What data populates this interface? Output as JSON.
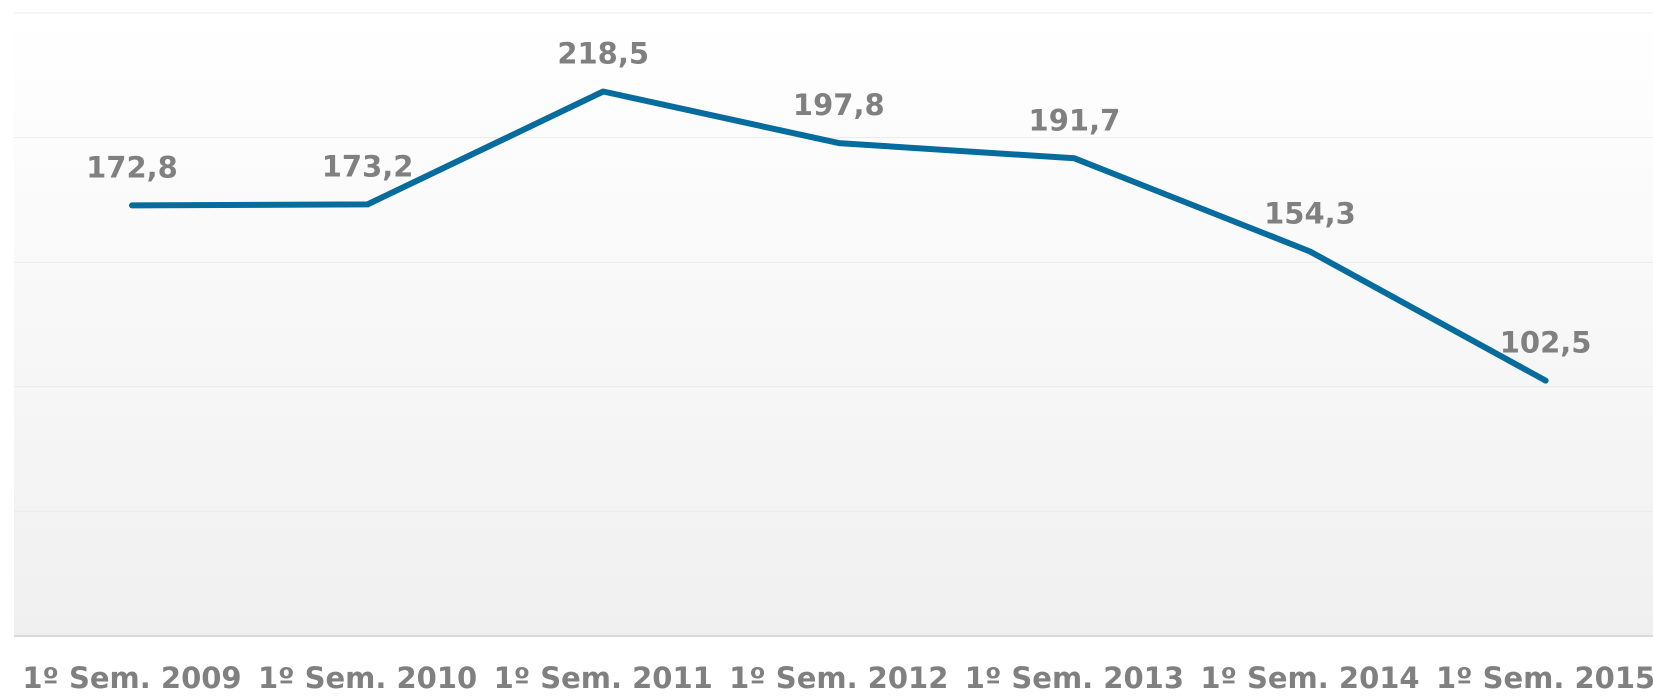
{
  "chart_data": {
    "type": "line",
    "categories": [
      "1º Sem. 2009",
      "1º Sem. 2010",
      "1º Sem. 2011",
      "1º Sem. 2012",
      "1º Sem. 2013",
      "1º Sem. 2014",
      "1º Sem. 2015"
    ],
    "series": [
      {
        "name": null,
        "color": "#066c9d",
        "values": [
          172.8,
          173.2,
          218.5,
          197.8,
          191.7,
          154.3,
          102.5
        ],
        "value_labels": [
          "172,8",
          "173,2",
          "218,5",
          "197,8",
          "191,7",
          "154,3",
          "102,5"
        ]
      }
    ],
    "ylim": [
      0,
      250
    ],
    "yticks": [
      0,
      50,
      100,
      150,
      200,
      250
    ],
    "grid": true
  }
}
